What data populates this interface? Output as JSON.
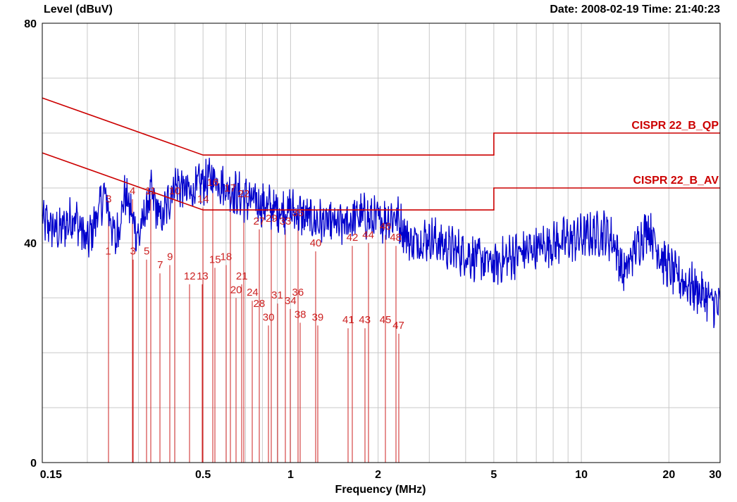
{
  "header": {
    "ylabel": "Level (dBuV)",
    "date_time": "Date: 2008-02-19  Time: 21:40:23"
  },
  "colors": {
    "trace": "#0000cc",
    "limit": "#cc0000",
    "marker": "#cc2222",
    "grid": "#c8c8c8",
    "frame": "#000000"
  },
  "chart_data": {
    "type": "line",
    "xlabel": "Frequency (MHz)",
    "ylabel": "Level (dBuV)",
    "xscale": "log",
    "xlim": [
      0.14,
      30
    ],
    "ylim": [
      0,
      80
    ],
    "grid": true,
    "x_ticks": [
      {
        "value": 0.15,
        "label": "0.15"
      },
      {
        "value": 0.5,
        "label": "0.5"
      },
      {
        "value": 1,
        "label": "1"
      },
      {
        "value": 2,
        "label": "2"
      },
      {
        "value": 5,
        "label": "5"
      },
      {
        "value": 10,
        "label": "10"
      },
      {
        "value": 20,
        "label": "20"
      },
      {
        "value": 30,
        "label": "30"
      }
    ],
    "y_ticks": [
      {
        "value": 0,
        "label": "0"
      },
      {
        "value": 40,
        "label": "40"
      },
      {
        "value": 80,
        "label": "80"
      }
    ],
    "limits": [
      {
        "name": "CISPR 22_B_QP",
        "points": [
          [
            0.14,
            66.4
          ],
          [
            0.5,
            56
          ],
          [
            5,
            56
          ],
          [
            5,
            60
          ],
          [
            30,
            60
          ]
        ]
      },
      {
        "name": "CISPR 22_B_AV",
        "points": [
          [
            0.14,
            56.4
          ],
          [
            0.5,
            46
          ],
          [
            5,
            46
          ],
          [
            5,
            50
          ],
          [
            30,
            50
          ]
        ]
      }
    ],
    "trace_profile": [
      [
        0.14,
        44
      ],
      [
        0.16,
        42
      ],
      [
        0.18,
        45
      ],
      [
        0.2,
        40
      ],
      [
        0.23,
        49
      ],
      [
        0.25,
        40
      ],
      [
        0.27,
        49
      ],
      [
        0.3,
        41
      ],
      [
        0.33,
        49
      ],
      [
        0.36,
        44
      ],
      [
        0.4,
        51
      ],
      [
        0.45,
        49
      ],
      [
        0.5,
        51
      ],
      [
        0.55,
        52
      ],
      [
        0.6,
        50
      ],
      [
        0.7,
        48
      ],
      [
        0.8,
        47
      ],
      [
        0.9,
        46
      ],
      [
        1.0,
        46
      ],
      [
        1.2,
        44
      ],
      [
        1.5,
        43
      ],
      [
        1.7,
        45
      ],
      [
        2.0,
        44
      ],
      [
        2.3,
        45
      ],
      [
        2.6,
        40
      ],
      [
        3.0,
        41
      ],
      [
        3.5,
        39
      ],
      [
        4.0,
        38
      ],
      [
        4.5,
        37
      ],
      [
        5.0,
        36
      ],
      [
        6.0,
        38
      ],
      [
        7.0,
        39
      ],
      [
        8.0,
        40
      ],
      [
        10,
        41
      ],
      [
        12,
        42
      ],
      [
        13,
        40
      ],
      [
        14,
        34
      ],
      [
        15,
        38
      ],
      [
        17,
        43
      ],
      [
        19,
        37
      ],
      [
        21,
        34
      ],
      [
        24,
        32
      ],
      [
        27,
        30
      ],
      [
        30,
        28
      ]
    ],
    "markers": [
      {
        "label": "1",
        "freq": 0.236,
        "level": 38.5
      },
      {
        "label": "3",
        "freq": 0.287,
        "level": 38.5
      },
      {
        "label": "5",
        "freq": 0.32,
        "level": 38.5
      },
      {
        "label": "7",
        "freq": 0.356,
        "level": 36.0
      },
      {
        "label": "9",
        "freq": 0.385,
        "level": 37.5
      },
      {
        "label": "12",
        "freq": 0.45,
        "level": 34.0
      },
      {
        "label": "3",
        "freq": 0.237,
        "level": 48.0
      },
      {
        "label": "4",
        "freq": 0.286,
        "level": 49.5
      },
      {
        "label": "11",
        "freq": 0.33,
        "level": 49.5
      },
      {
        "label": "10",
        "freq": 0.4,
        "level": 49.5
      },
      {
        "label": "14",
        "freq": 0.5,
        "level": 48.0
      },
      {
        "label": "16",
        "freq": 0.54,
        "level": 51.0
      },
      {
        "label": "17",
        "freq": 0.62,
        "level": 50.0
      },
      {
        "label": "22",
        "freq": 0.69,
        "level": 49.0
      },
      {
        "label": "13",
        "freq": 0.498,
        "level": 34.0
      },
      {
        "label": "15",
        "freq": 0.55,
        "level": 37.0
      },
      {
        "label": "18",
        "freq": 0.6,
        "level": 37.5
      },
      {
        "label": "21",
        "freq": 0.68,
        "level": 34.0
      },
      {
        "label": "20",
        "freq": 0.65,
        "level": 31.5
      },
      {
        "label": "24",
        "freq": 0.74,
        "level": 31.0
      },
      {
        "label": "28",
        "freq": 0.78,
        "level": 29.0
      },
      {
        "label": "31",
        "freq": 0.9,
        "level": 30.5
      },
      {
        "label": "34",
        "freq": 1.0,
        "level": 29.5
      },
      {
        "label": "36",
        "freq": 1.06,
        "level": 31.0
      },
      {
        "label": "30",
        "freq": 0.84,
        "level": 26.5
      },
      {
        "label": "38",
        "freq": 1.08,
        "level": 27.0
      },
      {
        "label": "39",
        "freq": 1.24,
        "level": 26.5
      },
      {
        "label": "27",
        "freq": 0.78,
        "level": 44.0
      },
      {
        "label": "29",
        "freq": 0.86,
        "level": 44.5
      },
      {
        "label": "33",
        "freq": 0.96,
        "level": 44.0
      },
      {
        "label": "35",
        "freq": 1.06,
        "level": 45.5
      },
      {
        "label": "40",
        "freq": 1.22,
        "level": 40.0
      },
      {
        "label": "42",
        "freq": 1.63,
        "level": 41.0
      },
      {
        "label": "44",
        "freq": 1.85,
        "level": 41.5
      },
      {
        "label": "46",
        "freq": 2.12,
        "level": 43.0
      },
      {
        "label": "48",
        "freq": 2.3,
        "level": 41.0
      },
      {
        "label": "41",
        "freq": 1.58,
        "level": 26.0
      },
      {
        "label": "43",
        "freq": 1.8,
        "level": 26.0
      },
      {
        "label": "45",
        "freq": 2.12,
        "level": 26.0
      },
      {
        "label": "47",
        "freq": 2.35,
        "level": 25.0
      }
    ]
  }
}
